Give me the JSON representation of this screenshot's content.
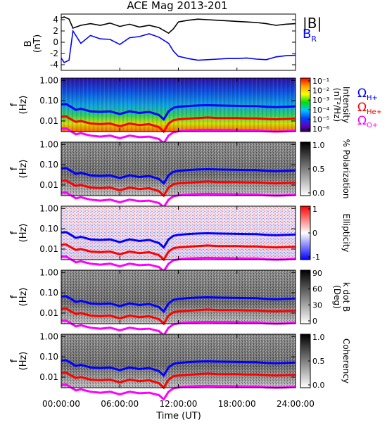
{
  "title": "ACE Mag 2013-201",
  "legend_top": {
    "b_total": "|B|",
    "b_r": "B",
    "b_r_sub": "R"
  },
  "gyro_legend": [
    {
      "label": "Ω",
      "sub": "H+",
      "color": "#0000ff"
    },
    {
      "label": "Ω",
      "sub": "He+",
      "color": "#ff0000"
    },
    {
      "label": "Ω",
      "sub": "O+",
      "color": "#ff00ff"
    }
  ],
  "x_axis": {
    "label": "Time (UT)",
    "ticks": [
      "00:00:00",
      "06:00:00",
      "12:00:00",
      "18:00:00",
      "24:00:00"
    ],
    "range_hours": [
      0,
      24
    ]
  },
  "colors": {
    "b_total": "#000000",
    "b_r": "#0000ff",
    "h_plus": "#0000ff",
    "he_plus": "#ff0000",
    "o_plus": "#ff00ff"
  },
  "chart_data": [
    {
      "type": "line",
      "ylabel": "B",
      "yunit": "(nT)",
      "ylim": [
        -5,
        5
      ],
      "yticks": [
        "4",
        "2",
        "0",
        "-2",
        "-4"
      ],
      "x_hours": [
        0,
        0.3,
        0.8,
        1.2,
        2,
        3,
        4,
        5,
        6,
        7,
        8,
        9,
        10,
        11,
        11.5,
        12,
        13,
        14,
        15,
        16,
        17,
        18,
        19,
        20,
        21,
        22,
        23,
        24
      ],
      "series": [
        {
          "name": "|B|",
          "values": [
            4.3,
            4.5,
            4.1,
            2.5,
            3.0,
            3.3,
            3.0,
            3.4,
            2.8,
            3.2,
            2.7,
            3.0,
            2.6,
            1.6,
            2.4,
            3.6,
            3.9,
            4.1,
            4.0,
            3.9,
            3.8,
            3.7,
            3.6,
            3.5,
            3.3,
            3.0,
            3.2,
            3.3
          ]
        },
        {
          "name": "B_R",
          "values": [
            -2.8,
            -3.6,
            -3.2,
            2.0,
            -0.2,
            1.2,
            0.6,
            0.5,
            -0.4,
            0.8,
            1.0,
            1.5,
            0.9,
            -0.2,
            -1.6,
            -2.5,
            -2.9,
            -3.2,
            -3.1,
            -3.0,
            -2.9,
            -2.9,
            -2.8,
            -3.0,
            -3.1,
            -2.6,
            -2.4,
            -2.3
          ]
        }
      ]
    },
    {
      "type": "heatmap",
      "ylabel": "f",
      "yunit": "(Hz)",
      "yticks": [
        "1.00",
        "0.10",
        "0.01"
      ],
      "colorbar_label": "Intensity",
      "colorbar_unit": "(nT²/Hz)",
      "colorbar_ticks": [
        "10⁻¹",
        "10⁻²",
        "10⁻³",
        "10⁻⁴",
        "10⁻⁵",
        "10⁻⁶"
      ]
    },
    {
      "type": "heatmap",
      "ylabel": "f",
      "yunit": "(Hz)",
      "yticks": [
        "1.00",
        "0.10",
        "0.01"
      ],
      "colorbar_label": "% Polarization",
      "colorbar_ticks": [
        "1.0",
        "0.5",
        "0.0"
      ]
    },
    {
      "type": "heatmap",
      "ylabel": "f",
      "yunit": "(Hz)",
      "yticks": [
        "1.00",
        "0.10",
        "0.01"
      ],
      "colorbar_label": "Ellipticity",
      "colorbar_ticks": [
        "1",
        "0",
        "-1"
      ]
    },
    {
      "type": "heatmap",
      "ylabel": "f",
      "yunit": "(Hz)",
      "yticks": [
        "1.00",
        "0.10",
        "0.01"
      ],
      "colorbar_label": "k dot B",
      "colorbar_unit": "(Deg)",
      "colorbar_ticks": [
        "90",
        "60",
        "30",
        "0"
      ]
    },
    {
      "type": "heatmap",
      "ylabel": "f",
      "yunit": "(Hz)",
      "yticks": [
        "1.00",
        "0.10",
        "0.01"
      ],
      "colorbar_label": "Coherency",
      "colorbar_ticks": [
        "1.0",
        "0.5",
        "0.0"
      ]
    }
  ],
  "gyrofrequency_lines": {
    "x_hours": [
      0,
      0.5,
      1,
      1.5,
      2,
      3,
      4,
      5,
      6,
      7,
      8,
      9,
      10,
      10.5,
      11,
      11.5,
      12,
      13,
      14,
      15,
      16,
      17,
      18,
      19,
      20,
      21,
      22,
      23,
      24
    ],
    "H_plus_hz": [
      0.065,
      0.068,
      0.05,
      0.035,
      0.04,
      0.03,
      0.028,
      0.03,
      0.022,
      0.03,
      0.025,
      0.028,
      0.02,
      0.012,
      0.03,
      0.045,
      0.05,
      0.055,
      0.058,
      0.06,
      0.058,
      0.057,
      0.056,
      0.055,
      0.054,
      0.05,
      0.048,
      0.05,
      0.052
    ],
    "He_plus_hz": [
      0.016,
      0.017,
      0.012,
      0.009,
      0.01,
      0.0075,
      0.007,
      0.0075,
      0.0055,
      0.0075,
      0.0063,
      0.007,
      0.005,
      0.003,
      0.0075,
      0.011,
      0.012,
      0.013,
      0.014,
      0.015,
      0.014,
      0.014,
      0.014,
      0.0135,
      0.0135,
      0.0125,
      0.012,
      0.0125,
      0.013
    ],
    "O_plus_hz": [
      0.0042,
      0.0043,
      0.0031,
      0.0022,
      0.0025,
      0.0019,
      0.0017,
      0.0019,
      0.0014,
      0.0019,
      0.0016,
      0.0017,
      0.0013,
      0.0008,
      0.0019,
      0.0028,
      0.0031,
      0.0034,
      0.0036,
      0.0037,
      0.0036,
      0.0036,
      0.0035,
      0.0034,
      0.0034,
      0.0031,
      0.003,
      0.0031,
      0.0033
    ]
  }
}
